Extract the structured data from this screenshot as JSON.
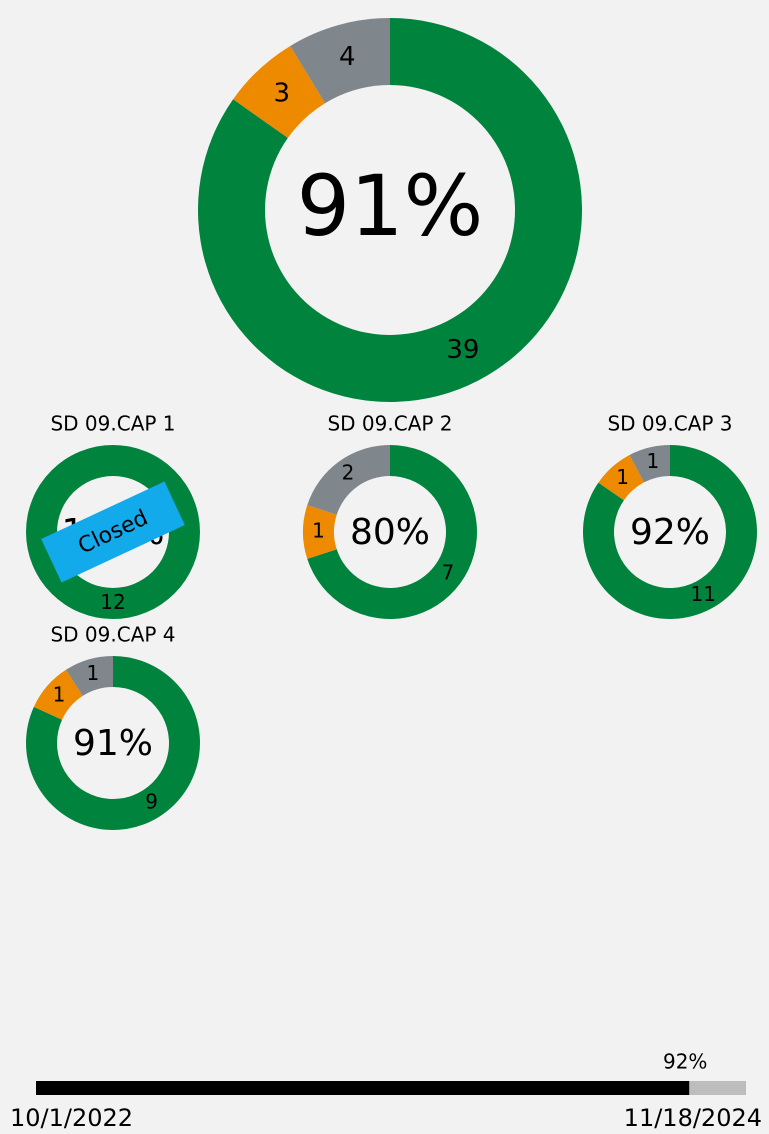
{
  "donuts": [
    {
      "center_label": "91%",
      "values": [
        39,
        3,
        4
      ]
    },
    {
      "title": "SD 09.CAP 1",
      "center_label": "100%",
      "values": [
        12
      ],
      "badge": "Closed"
    },
    {
      "title": "SD 09.CAP 2",
      "center_label": "80%",
      "values": [
        7,
        1,
        2
      ]
    },
    {
      "title": "SD 09.CAP 3",
      "center_label": "92%",
      "values": [
        11,
        1,
        1
      ]
    },
    {
      "title": "SD 09.CAP 4",
      "center_label": "91%",
      "values": [
        9,
        1,
        1
      ]
    }
  ],
  "colors": [
    "#00843d",
    "#ee8a00",
    "#7f878c"
  ],
  "progress": {
    "values": [
      92
    ],
    "value_labels": [
      "92%"
    ],
    "xlim": [
      0,
      100
    ],
    "start": "10/1/2022",
    "end": "11/18/2024"
  }
}
